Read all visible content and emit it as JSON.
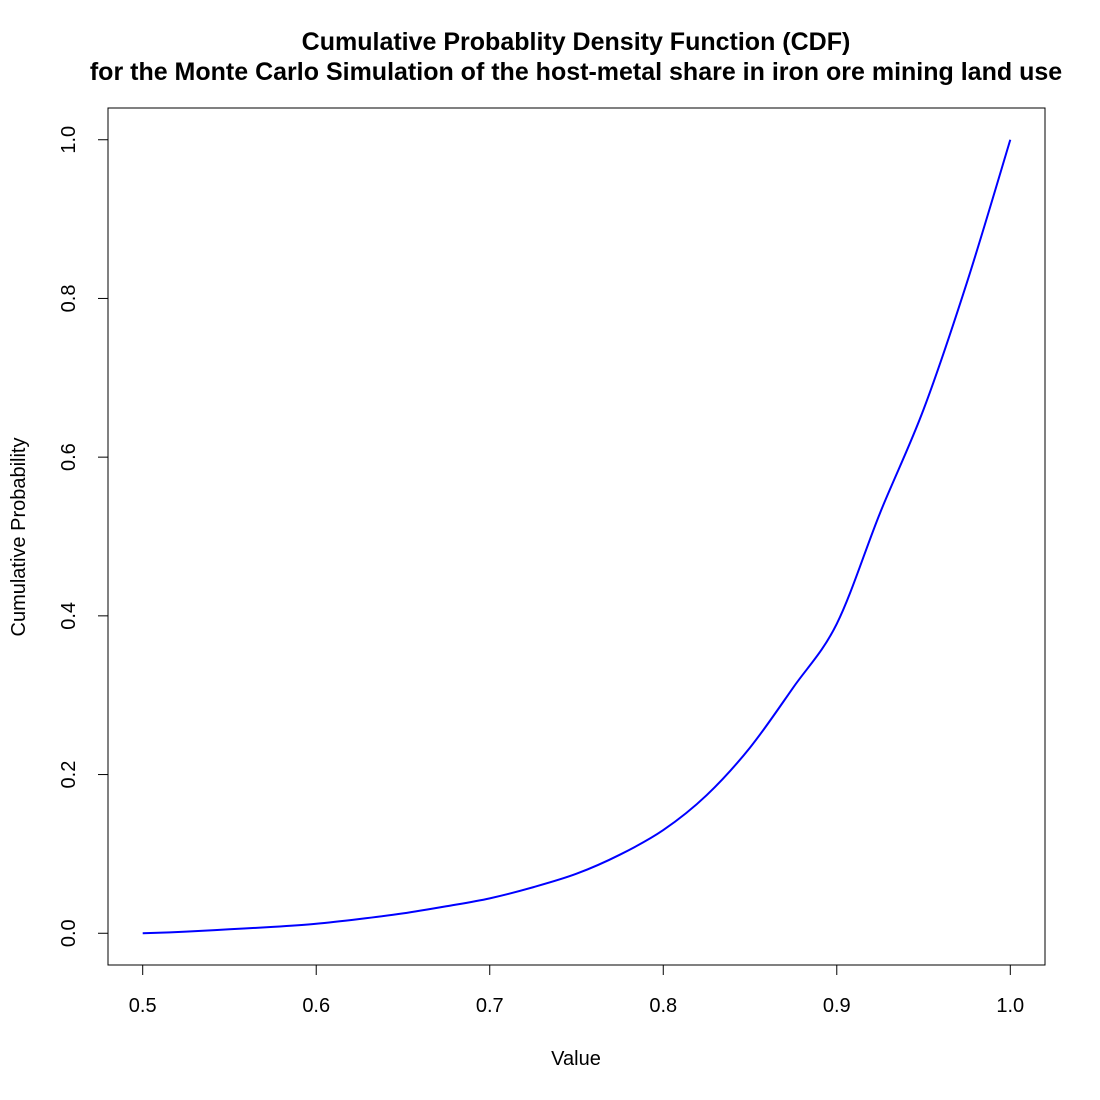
{
  "chart_data": {
    "type": "line",
    "title": "Cumulative Probablity Density Function (CDF)",
    "subtitle": "for the Monte Carlo Simulation of the host-metal share in iron ore mining land use",
    "xlabel": "Value",
    "ylabel": "Cumulative Probability",
    "xlim": [
      0.48,
      1.02
    ],
    "ylim": [
      -0.04,
      1.04
    ],
    "x_ticks": [
      0.5,
      0.6,
      0.7,
      0.8,
      0.9,
      1.0
    ],
    "x_tick_labels": [
      "0.5",
      "0.6",
      "0.7",
      "0.8",
      "0.9",
      "1.0"
    ],
    "y_ticks": [
      0.0,
      0.2,
      0.4,
      0.6,
      0.8,
      1.0
    ],
    "y_tick_labels": [
      "0.0",
      "0.2",
      "0.4",
      "0.6",
      "0.8",
      "1.0"
    ],
    "grid": false,
    "line_color": "#0000ff",
    "series": [
      {
        "x": [
          0.5,
          0.525,
          0.55,
          0.575,
          0.6,
          0.625,
          0.65,
          0.675,
          0.7,
          0.725,
          0.75,
          0.775,
          0.8,
          0.825,
          0.85,
          0.875,
          0.9,
          0.925,
          0.95,
          0.975,
          1.0
        ],
        "values": [
          0.0,
          0.002,
          0.005,
          0.008,
          0.012,
          0.018,
          0.025,
          0.034,
          0.044,
          0.058,
          0.075,
          0.099,
          0.13,
          0.174,
          0.234,
          0.31,
          0.39,
          0.53,
          0.66,
          0.82,
          1.0
        ]
      }
    ]
  }
}
